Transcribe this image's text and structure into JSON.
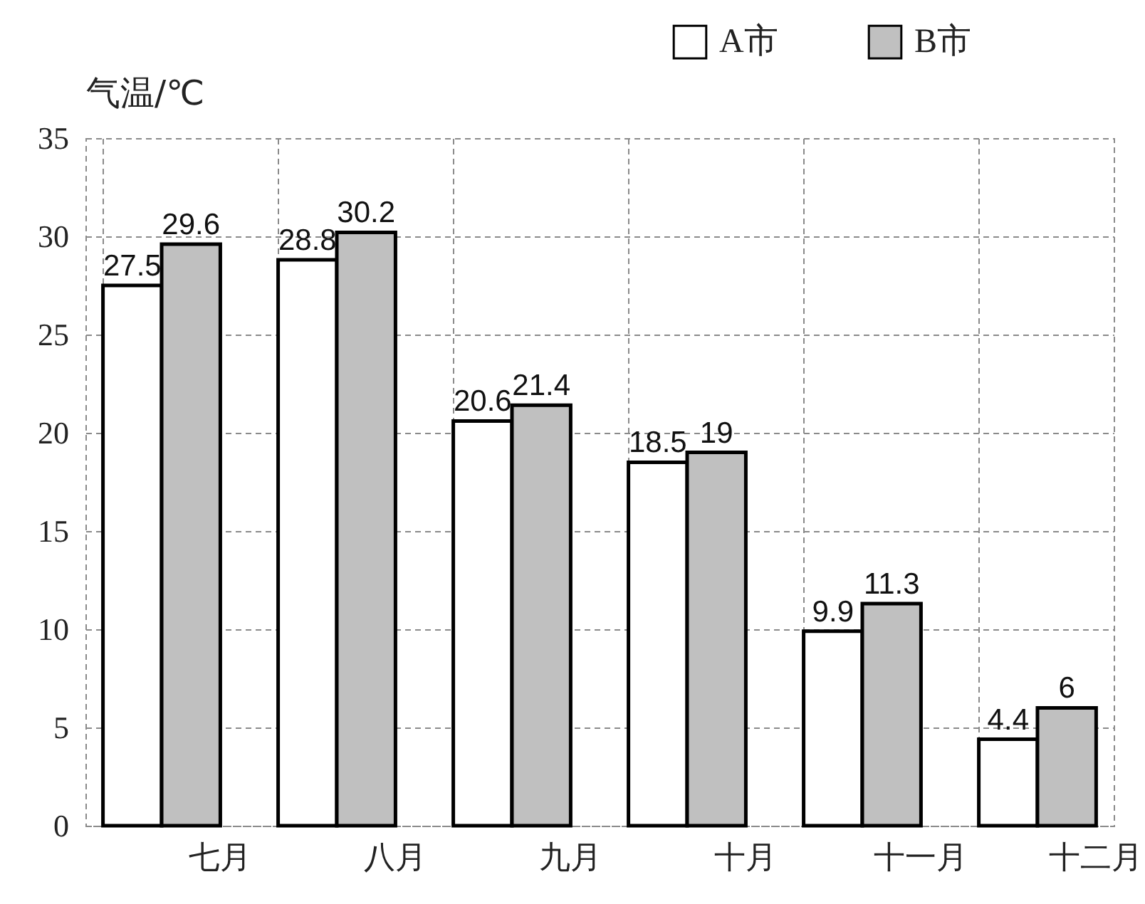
{
  "chart_data": {
    "type": "bar",
    "ylabel": "气温/℃",
    "categories": [
      "七月",
      "八月",
      "九月",
      "十月",
      "十一月",
      "十二月"
    ],
    "series": [
      {
        "name": "A市",
        "color": "#ffffff",
        "values": [
          27.5,
          28.8,
          20.6,
          18.5,
          9.9,
          4.4
        ]
      },
      {
        "name": "B市",
        "color": "#c0c0c0",
        "values": [
          29.6,
          30.2,
          21.4,
          19,
          11.3,
          6
        ]
      }
    ],
    "ylim": [
      0,
      35
    ],
    "yticks": [
      0,
      5,
      10,
      15,
      20,
      25,
      30,
      35
    ],
    "grid": true,
    "legend": "top right",
    "data_labels": true
  }
}
